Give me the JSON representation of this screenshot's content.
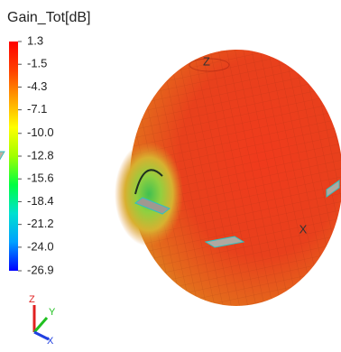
{
  "chart_data": {
    "type": "radiation-pattern-3d",
    "title": "Gain_Tot[dB]",
    "clim": [
      -26.9,
      1.3
    ],
    "colorbar_ticks": [
      1.3,
      -1.5,
      -4.3,
      -7.1,
      {
        "value": -10,
        "label": "-10.0"
      },
      -12.8,
      -15.6,
      -18.4,
      -21.2,
      {
        "value": -24,
        "label": "-24.0"
      },
      -26.9
    ],
    "colormap": [
      "#0000ff",
      "#00a0ff",
      "#00e0d0",
      "#00ff40",
      "#a0ff00",
      "#ffff00",
      "#ffa000",
      "#ff4000",
      "#ff0000"
    ],
    "surface_axis_labels": [
      "Z",
      "X"
    ],
    "triad_labels": [
      "Z",
      "Y",
      "X"
    ]
  }
}
